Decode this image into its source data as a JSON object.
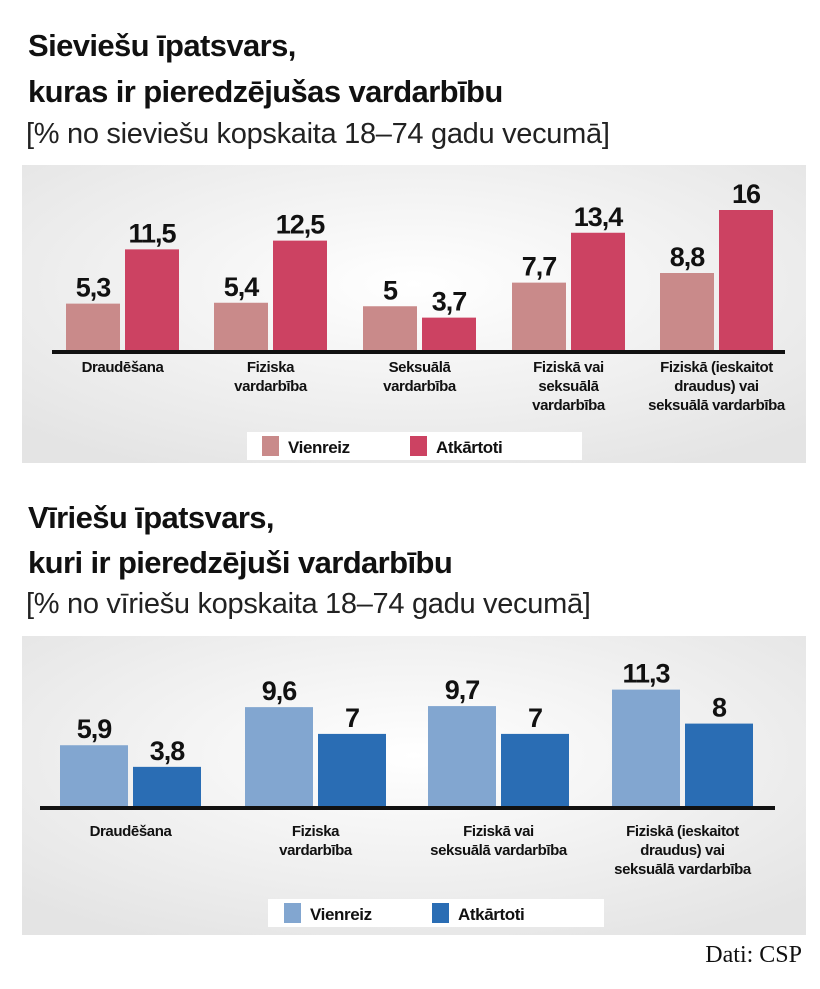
{
  "chart_data": [
    {
      "type": "bar",
      "title": [
        "Sieviešu īpatsvars,",
        "kuras ir pieredzējušas vardarbību"
      ],
      "subtitle": "[% no sieviešu kopskaita 18–74 gadu vecumā]",
      "categories": [
        [
          "Draudēšana"
        ],
        [
          "Fiziska",
          "vardarbība"
        ],
        [
          "Seksuālā",
          "vardarbība"
        ],
        [
          "Fiziskā vai",
          "seksuālā",
          "vardarbība"
        ],
        [
          "Fiziskā (ieskaitot",
          "draudus) vai",
          "seksuālā vardarbība"
        ]
      ],
      "series": [
        {
          "name": "Vienreiz",
          "color": "#c98a8a",
          "values": [
            5.3,
            5.4,
            5,
            7.7,
            8.8
          ],
          "labels": [
            "5,3",
            "5,4",
            "5",
            "7,7",
            "8,8"
          ]
        },
        {
          "name": "Atkārtoti",
          "color": "#cc4262",
          "values": [
            11.5,
            12.5,
            3.7,
            13.4,
            16
          ],
          "labels": [
            "11,5",
            "12,5",
            "3,7",
            "13,4",
            "16"
          ]
        }
      ],
      "legend": "bottom",
      "grid": false
    },
    {
      "type": "bar",
      "title": [
        "Vīriešu īpatsvars,",
        "kuri ir pieredzējuši vardarbību"
      ],
      "subtitle": "[% no vīriešu kopskaita 18–74 gadu vecumā]",
      "categories": [
        [
          "Draudēšana"
        ],
        [
          "Fiziska",
          "vardarbība"
        ],
        [
          "Fiziskā vai",
          "seksuālā vardarbība"
        ],
        [
          "Fiziskā (ieskaitot",
          "draudus) vai",
          "seksuālā vardarbība"
        ]
      ],
      "series": [
        {
          "name": "Vienreiz",
          "color": "#82a6d0",
          "values": [
            5.9,
            9.6,
            9.7,
            11.3
          ],
          "labels": [
            "5,9",
            "9,6",
            "9,7",
            "11,3"
          ]
        },
        {
          "name": "Atkārtoti",
          "color": "#2a6db4",
          "values": [
            3.8,
            7,
            7,
            8
          ],
          "labels": [
            "3,8",
            "7",
            "7",
            "8"
          ]
        }
      ],
      "legend": "bottom",
      "grid": false
    }
  ],
  "source": "Dati: CSP"
}
